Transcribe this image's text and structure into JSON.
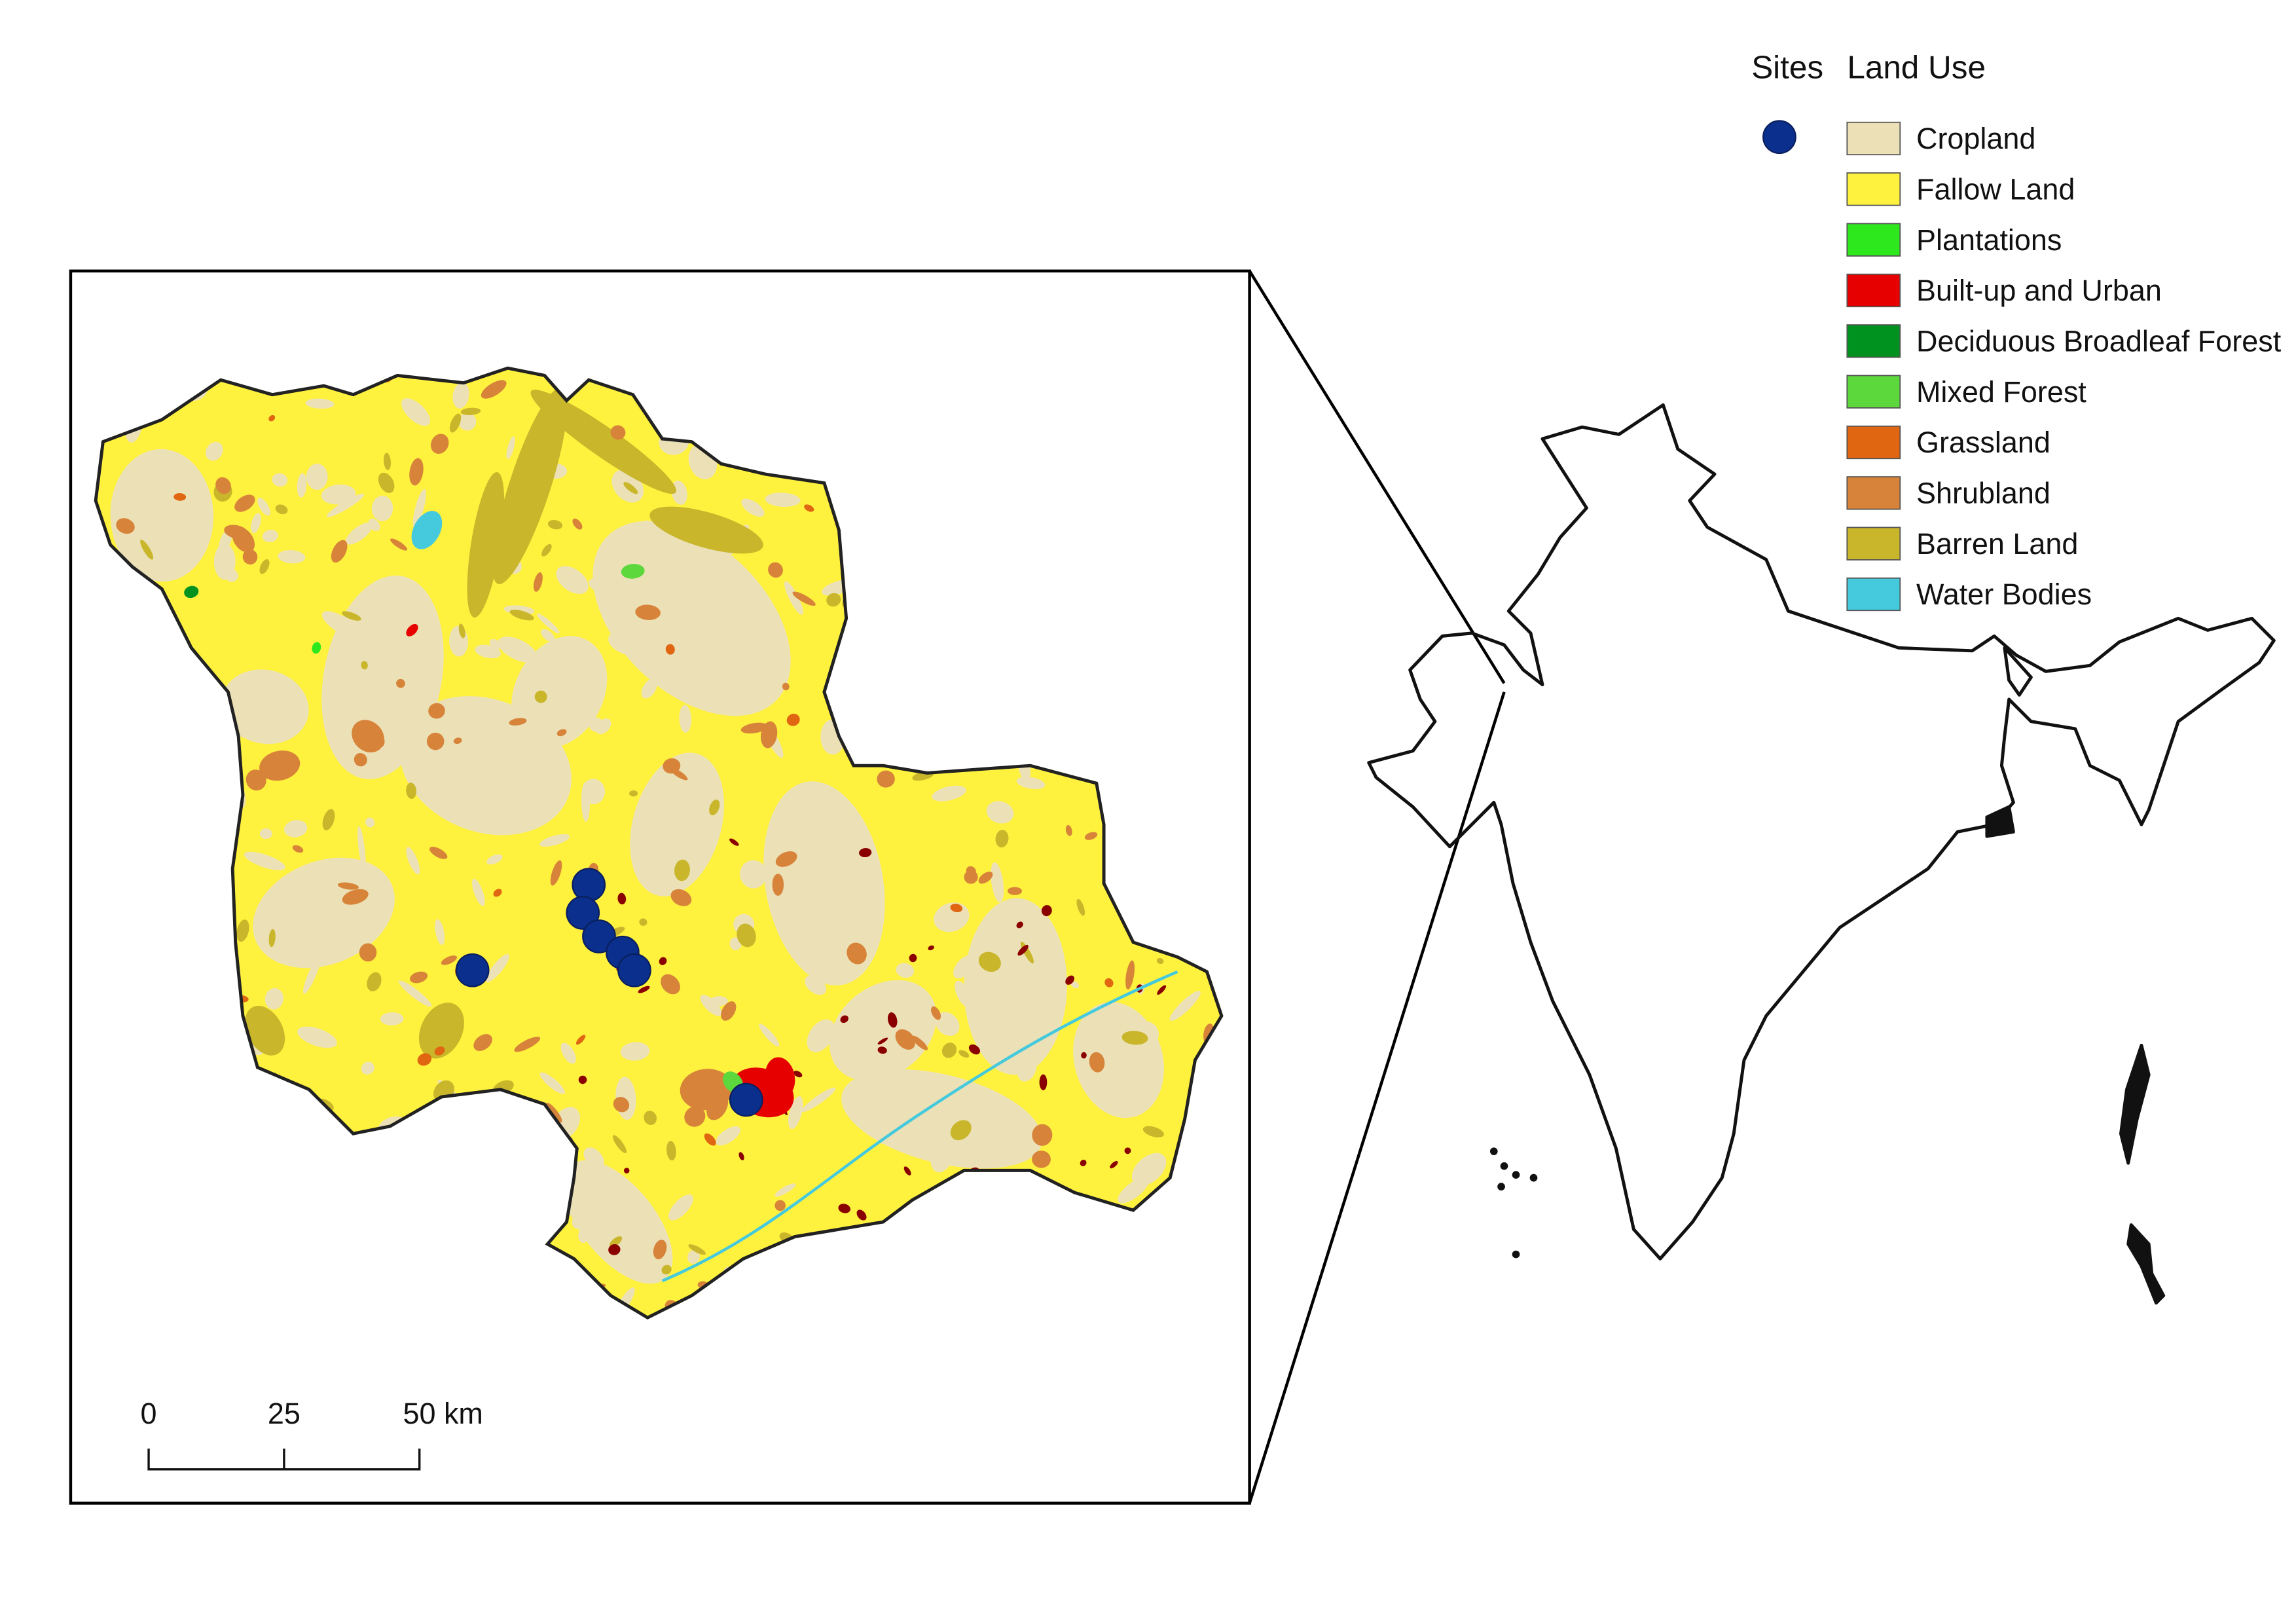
{
  "legend": {
    "sites_title": "Sites",
    "landuse_title": "Land Use",
    "site_color": "#0b2f8c",
    "classes": [
      {
        "label": "Cropland",
        "color": "#ece1b6"
      },
      {
        "label": "Fallow Land",
        "color": "#fff23f"
      },
      {
        "label": "Plantations",
        "color": "#2ee81e"
      },
      {
        "label": "Built-up and Urban",
        "color": "#e60000"
      },
      {
        "label": "Deciduous Broadleaf Forest",
        "color": "#00921f"
      },
      {
        "label": "Mixed Forest",
        "color": "#5cd83c"
      },
      {
        "label": "Grassland",
        "color": "#e06612"
      },
      {
        "label": "Shrubland",
        "color": "#d7843a"
      },
      {
        "label": "Barren Land",
        "color": "#c9b62a"
      },
      {
        "label": "Water Bodies",
        "color": "#45c9dd"
      }
    ]
  },
  "scalebar": {
    "ticks": [
      "0",
      "25",
      "50 km"
    ]
  },
  "colors": {
    "region_outline": "#222222",
    "frame": "#000000",
    "dark_red": "#8a0000"
  },
  "icons": {
    "site_marker": "circle-marker-icon",
    "india_outline": "country-outline-shape"
  }
}
